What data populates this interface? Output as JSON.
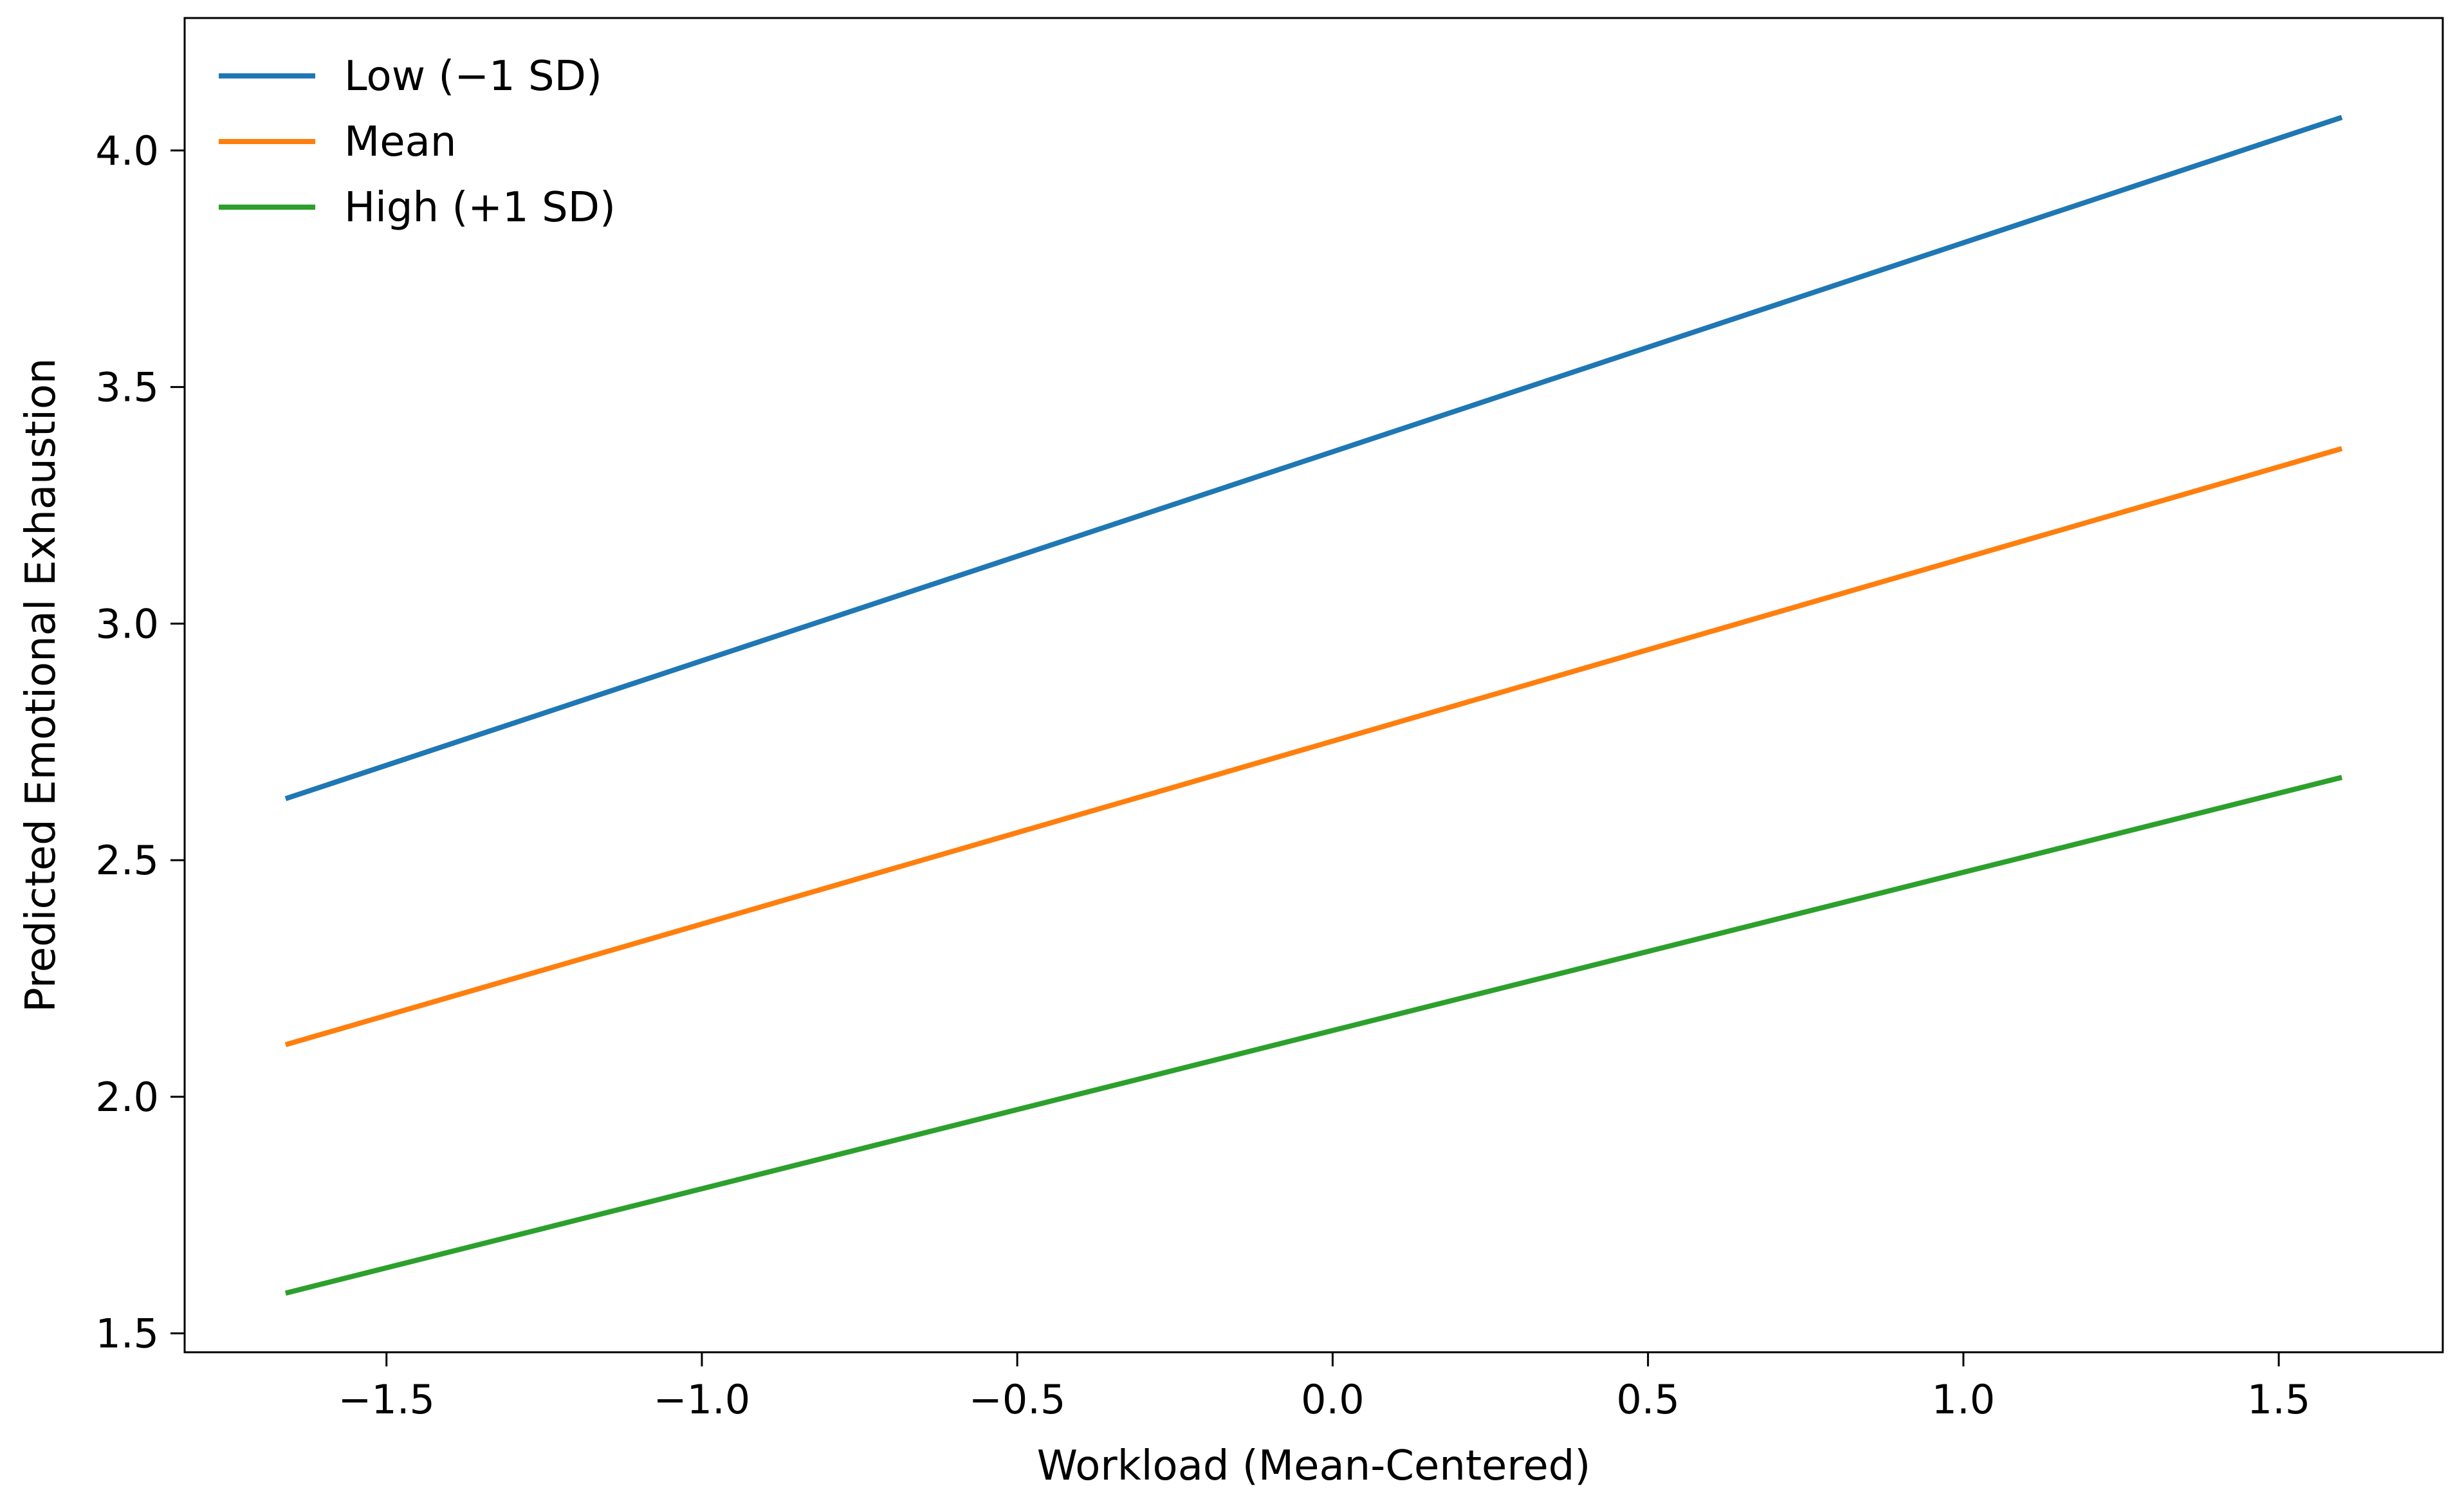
{
  "chart_data": {
    "type": "line",
    "title": "",
    "xlabel": "Workload (Mean-Centered)",
    "ylabel": "Predicted Emotional Exhaustion",
    "xlim": [
      -1.82,
      1.76
    ],
    "ylim": [
      1.46,
      4.28
    ],
    "xticks": [
      -1.5,
      -1.0,
      -0.5,
      0.0,
      0.5,
      1.0,
      1.5
    ],
    "xtick_labels": [
      "−1.5",
      "−1.0",
      "−0.5",
      "0.0",
      "0.5",
      "1.0",
      "1.5"
    ],
    "yticks": [
      1.5,
      2.0,
      2.5,
      3.0,
      3.5,
      4.0
    ],
    "ytick_labels": [
      "1.5",
      "2.0",
      "2.5",
      "3.0",
      "3.5",
      "4.0"
    ],
    "grid": false,
    "legend_position": "top-left",
    "series": [
      {
        "name": "Low (−1 SD)",
        "color": "#1f77b4",
        "x": [
          -1.66,
          1.6
        ],
        "y": [
          2.63,
          4.07
        ]
      },
      {
        "name": "Mean",
        "color": "#ff7f0e",
        "x": [
          -1.66,
          1.6
        ],
        "y": [
          2.11,
          3.37
        ]
      },
      {
        "name": "High (+1 SD)",
        "color": "#2ca02c",
        "x": [
          -1.66,
          1.6
        ],
        "y": [
          1.585,
          2.675
        ]
      }
    ]
  }
}
